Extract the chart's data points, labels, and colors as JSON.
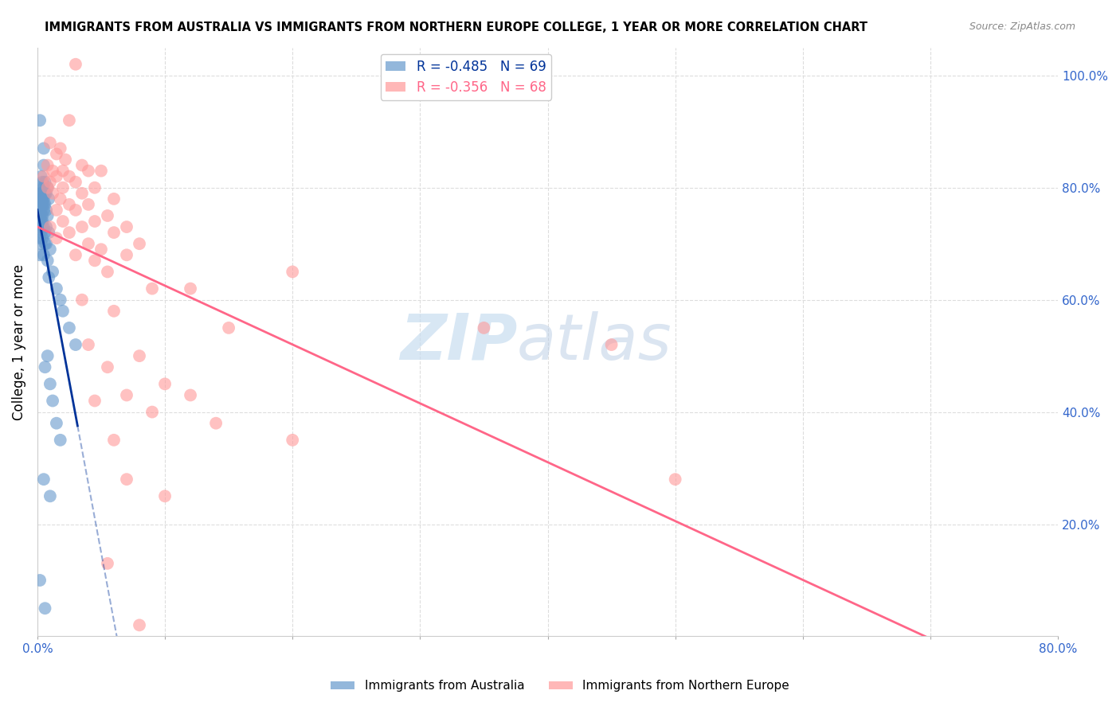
{
  "title": "IMMIGRANTS FROM AUSTRALIA VS IMMIGRANTS FROM NORTHERN EUROPE COLLEGE, 1 YEAR OR MORE CORRELATION CHART",
  "source": "Source: ZipAtlas.com",
  "xlabel": "",
  "ylabel": "College, 1 year or more",
  "xlim": [
    0.0,
    0.8
  ],
  "ylim": [
    0.0,
    1.05
  ],
  "blue_R": -0.485,
  "blue_N": 69,
  "pink_R": -0.356,
  "pink_N": 68,
  "blue_color": "#6699cc",
  "pink_color": "#ff9999",
  "blue_line_color": "#003399",
  "pink_line_color": "#ff6688",
  "watermark_zip": "ZIP",
  "watermark_atlas": "atlas",
  "background_color": "#ffffff",
  "grid_color": "#dddddd",
  "axis_label_color": "#3366cc",
  "legend_bottom_labels": [
    "Immigrants from Australia",
    "Immigrants from Northern Europe"
  ],
  "blue_scatter": [
    [
      0.002,
      0.92
    ],
    [
      0.005,
      0.87
    ],
    [
      0.005,
      0.84
    ],
    [
      0.003,
      0.82
    ],
    [
      0.004,
      0.81
    ],
    [
      0.006,
      0.81
    ],
    [
      0.003,
      0.8
    ],
    [
      0.005,
      0.8
    ],
    [
      0.008,
      0.8
    ],
    [
      0.002,
      0.79
    ],
    [
      0.004,
      0.79
    ],
    [
      0.003,
      0.79
    ],
    [
      0.006,
      0.79
    ],
    [
      0.007,
      0.79
    ],
    [
      0.002,
      0.78
    ],
    [
      0.003,
      0.78
    ],
    [
      0.004,
      0.78
    ],
    [
      0.005,
      0.78
    ],
    [
      0.009,
      0.78
    ],
    [
      0.002,
      0.77
    ],
    [
      0.003,
      0.77
    ],
    [
      0.004,
      0.77
    ],
    [
      0.005,
      0.77
    ],
    [
      0.006,
      0.77
    ],
    [
      0.001,
      0.76
    ],
    [
      0.002,
      0.76
    ],
    [
      0.003,
      0.76
    ],
    [
      0.005,
      0.76
    ],
    [
      0.007,
      0.76
    ],
    [
      0.002,
      0.75
    ],
    [
      0.003,
      0.75
    ],
    [
      0.004,
      0.75
    ],
    [
      0.008,
      0.75
    ],
    [
      0.001,
      0.74
    ],
    [
      0.003,
      0.74
    ],
    [
      0.004,
      0.74
    ],
    [
      0.002,
      0.73
    ],
    [
      0.004,
      0.73
    ],
    [
      0.005,
      0.73
    ],
    [
      0.007,
      0.73
    ],
    [
      0.003,
      0.72
    ],
    [
      0.006,
      0.72
    ],
    [
      0.009,
      0.72
    ],
    [
      0.002,
      0.71
    ],
    [
      0.004,
      0.71
    ],
    [
      0.006,
      0.7
    ],
    [
      0.003,
      0.7
    ],
    [
      0.007,
      0.7
    ],
    [
      0.01,
      0.69
    ],
    [
      0.002,
      0.68
    ],
    [
      0.005,
      0.68
    ],
    [
      0.008,
      0.67
    ],
    [
      0.012,
      0.65
    ],
    [
      0.009,
      0.64
    ],
    [
      0.015,
      0.62
    ],
    [
      0.018,
      0.6
    ],
    [
      0.02,
      0.58
    ],
    [
      0.025,
      0.55
    ],
    [
      0.03,
      0.52
    ],
    [
      0.008,
      0.5
    ],
    [
      0.006,
      0.48
    ],
    [
      0.01,
      0.45
    ],
    [
      0.012,
      0.42
    ],
    [
      0.015,
      0.38
    ],
    [
      0.018,
      0.35
    ],
    [
      0.005,
      0.28
    ],
    [
      0.01,
      0.25
    ],
    [
      0.002,
      0.1
    ],
    [
      0.006,
      0.05
    ]
  ],
  "pink_scatter": [
    [
      0.03,
      1.02
    ],
    [
      0.025,
      0.92
    ],
    [
      0.01,
      0.88
    ],
    [
      0.018,
      0.87
    ],
    [
      0.015,
      0.86
    ],
    [
      0.022,
      0.85
    ],
    [
      0.035,
      0.84
    ],
    [
      0.008,
      0.84
    ],
    [
      0.04,
      0.83
    ],
    [
      0.012,
      0.83
    ],
    [
      0.02,
      0.83
    ],
    [
      0.05,
      0.83
    ],
    [
      0.005,
      0.82
    ],
    [
      0.015,
      0.82
    ],
    [
      0.025,
      0.82
    ],
    [
      0.01,
      0.81
    ],
    [
      0.03,
      0.81
    ],
    [
      0.008,
      0.8
    ],
    [
      0.02,
      0.8
    ],
    [
      0.045,
      0.8
    ],
    [
      0.012,
      0.79
    ],
    [
      0.035,
      0.79
    ],
    [
      0.018,
      0.78
    ],
    [
      0.06,
      0.78
    ],
    [
      0.025,
      0.77
    ],
    [
      0.04,
      0.77
    ],
    [
      0.015,
      0.76
    ],
    [
      0.03,
      0.76
    ],
    [
      0.055,
      0.75
    ],
    [
      0.02,
      0.74
    ],
    [
      0.045,
      0.74
    ],
    [
      0.01,
      0.73
    ],
    [
      0.035,
      0.73
    ],
    [
      0.07,
      0.73
    ],
    [
      0.025,
      0.72
    ],
    [
      0.06,
      0.72
    ],
    [
      0.015,
      0.71
    ],
    [
      0.08,
      0.7
    ],
    [
      0.04,
      0.7
    ],
    [
      0.05,
      0.69
    ],
    [
      0.03,
      0.68
    ],
    [
      0.07,
      0.68
    ],
    [
      0.045,
      0.67
    ],
    [
      0.055,
      0.65
    ],
    [
      0.2,
      0.65
    ],
    [
      0.09,
      0.62
    ],
    [
      0.12,
      0.62
    ],
    [
      0.035,
      0.6
    ],
    [
      0.06,
      0.58
    ],
    [
      0.15,
      0.55
    ],
    [
      0.04,
      0.52
    ],
    [
      0.08,
      0.5
    ],
    [
      0.055,
      0.48
    ],
    [
      0.1,
      0.45
    ],
    [
      0.07,
      0.43
    ],
    [
      0.12,
      0.43
    ],
    [
      0.045,
      0.42
    ],
    [
      0.09,
      0.4
    ],
    [
      0.14,
      0.38
    ],
    [
      0.06,
      0.35
    ],
    [
      0.2,
      0.35
    ],
    [
      0.35,
      0.55
    ],
    [
      0.45,
      0.52
    ],
    [
      0.07,
      0.28
    ],
    [
      0.1,
      0.25
    ],
    [
      0.055,
      0.13
    ],
    [
      0.08,
      0.02
    ],
    [
      0.5,
      0.28
    ]
  ]
}
